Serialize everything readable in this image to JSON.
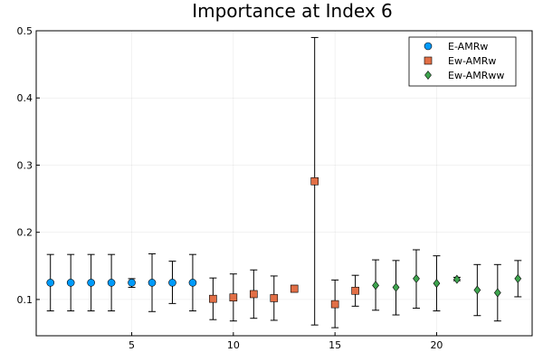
{
  "chart_data": {
    "type": "scatter",
    "title": "Importance at Index 6",
    "xlabel": "",
    "ylabel": "",
    "xlim": [
      0.3,
      24.7
    ],
    "ylim": [
      0.046,
      0.5
    ],
    "xticks": [
      5,
      10,
      15,
      20
    ],
    "yticks": [
      0.1,
      0.2,
      0.3,
      0.4,
      0.5
    ],
    "xtick_labels": [
      "5",
      "10",
      "15",
      "20"
    ],
    "ytick_labels": [
      "0.1",
      "0.2",
      "0.3",
      "0.4",
      "0.5"
    ],
    "grid": true,
    "legend_position": "top-right",
    "series": [
      {
        "name": "E-AMRw",
        "marker": "circle",
        "color": "#009AFA",
        "points": [
          {
            "x": 1,
            "y": 0.125,
            "lo": 0.083,
            "hi": 0.167
          },
          {
            "x": 2,
            "y": 0.125,
            "lo": 0.083,
            "hi": 0.167
          },
          {
            "x": 3,
            "y": 0.125,
            "lo": 0.083,
            "hi": 0.167
          },
          {
            "x": 4,
            "y": 0.125,
            "lo": 0.083,
            "hi": 0.167
          },
          {
            "x": 5,
            "y": 0.125,
            "lo": 0.118,
            "hi": 0.131
          },
          {
            "x": 6,
            "y": 0.125,
            "lo": 0.082,
            "hi": 0.168
          },
          {
            "x": 7,
            "y": 0.125,
            "lo": 0.094,
            "hi": 0.157
          },
          {
            "x": 8,
            "y": 0.125,
            "lo": 0.083,
            "hi": 0.167
          }
        ]
      },
      {
        "name": "Ew-AMRw",
        "marker": "square",
        "color": "#E26F46",
        "points": [
          {
            "x": 9,
            "y": 0.101,
            "lo": 0.07,
            "hi": 0.132
          },
          {
            "x": 10,
            "y": 0.103,
            "lo": 0.068,
            "hi": 0.138
          },
          {
            "x": 11,
            "y": 0.108,
            "lo": 0.072,
            "hi": 0.144
          },
          {
            "x": 12,
            "y": 0.102,
            "lo": 0.069,
            "hi": 0.135
          },
          {
            "x": 13,
            "y": 0.116,
            "lo": 0.111,
            "hi": 0.121
          },
          {
            "x": 14,
            "y": 0.276,
            "lo": 0.062,
            "hi": 0.49
          },
          {
            "x": 15,
            "y": 0.093,
            "lo": 0.058,
            "hi": 0.129
          },
          {
            "x": 16,
            "y": 0.113,
            "lo": 0.09,
            "hi": 0.136
          }
        ]
      },
      {
        "name": "Ew-AMRww",
        "marker": "diamond",
        "color": "#3EA44E",
        "points": [
          {
            "x": 17,
            "y": 0.121,
            "lo": 0.084,
            "hi": 0.159
          },
          {
            "x": 18,
            "y": 0.118,
            "lo": 0.077,
            "hi": 0.158
          },
          {
            "x": 19,
            "y": 0.131,
            "lo": 0.087,
            "hi": 0.174
          },
          {
            "x": 20,
            "y": 0.124,
            "lo": 0.083,
            "hi": 0.165
          },
          {
            "x": 21,
            "y": 0.13,
            "lo": 0.128,
            "hi": 0.133
          },
          {
            "x": 22,
            "y": 0.114,
            "lo": 0.076,
            "hi": 0.152
          },
          {
            "x": 23,
            "y": 0.11,
            "lo": 0.068,
            "hi": 0.152
          },
          {
            "x": 24,
            "y": 0.131,
            "lo": 0.104,
            "hi": 0.158
          }
        ]
      }
    ]
  }
}
